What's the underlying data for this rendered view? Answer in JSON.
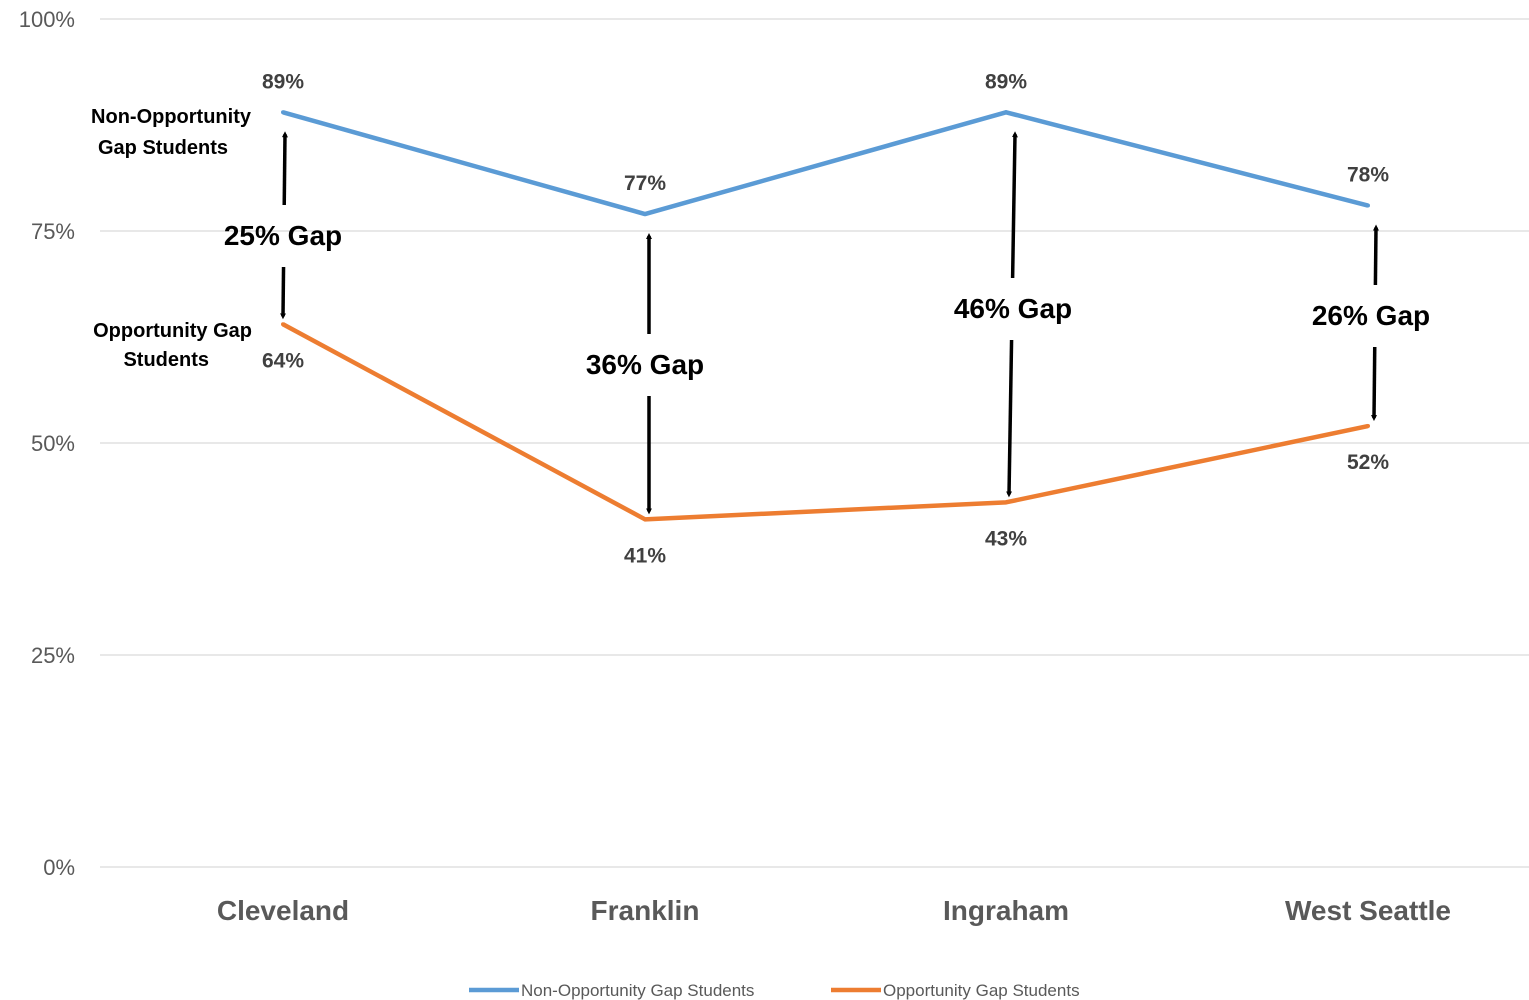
{
  "chart_data": {
    "type": "line",
    "categories": [
      "Cleveland",
      "Franklin",
      "Ingraham",
      "West Seattle"
    ],
    "series": [
      {
        "name": "Non-Opportunity Gap Students",
        "values": [
          89,
          77,
          89,
          78
        ],
        "labels": [
          "89%",
          "77%",
          "89%",
          "78%"
        ],
        "color": "#5b9bd5"
      },
      {
        "name": "Opportunity Gap Students",
        "values": [
          64,
          41,
          43,
          52
        ],
        "labels": [
          "64%",
          "41%",
          "43%",
          "52%"
        ],
        "color": "#ed7d31"
      }
    ],
    "ylim": [
      0,
      100
    ],
    "y_ticks": [
      0,
      25,
      50,
      75,
      100
    ],
    "y_tick_labels": [
      "0%",
      "25%",
      "50%",
      "75%",
      "100%"
    ],
    "grid": true,
    "legend_position": "bottom",
    "annotations": {
      "series_labels": [
        {
          "lines": [
            "Non-Opportunity",
            "Gap Students"
          ]
        },
        {
          "lines": [
            "Opportunity Gap",
            "Students"
          ]
        }
      ],
      "gaps": [
        {
          "category": "Cleveland",
          "text": "25% Gap"
        },
        {
          "category": "Franklin",
          "text": "36% Gap"
        },
        {
          "category": "Ingraham",
          "text": "46% Gap"
        },
        {
          "category": "West Seattle",
          "text": "26% Gap"
        }
      ]
    }
  }
}
